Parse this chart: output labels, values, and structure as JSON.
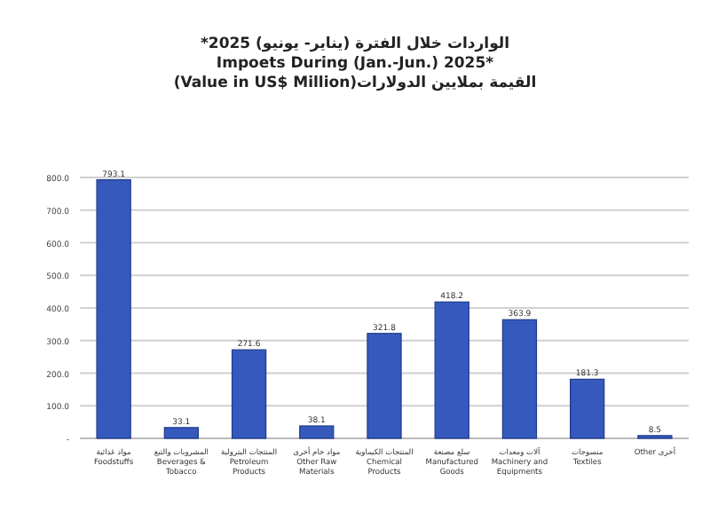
{
  "chart_data": {
    "type": "bar",
    "title": "الواردات خلال الفترة (يناير- يونيو) 2025*\nImpoets During (Jan.-Jun.) 2025*\n(Value in US$ Million)القيمة بملايين الدولارات",
    "categories": [
      "مواد غذائية\nFoodstuffs",
      "المشروبات والتبغ\nBeverages &\nTobacco",
      "المنتجات البترولية\nPetroleum\nProducts",
      "مواد خام أخرى\nOther Raw\nMaterials",
      "المنتجات الكيماوية\nChemical\nProducts",
      "سلع مصنعة\nManufactured\nGoods",
      "آلات ومعدات\nMachinery and\nEquipments",
      "منسوجات\nTextiles",
      "أخرى Other"
    ],
    "values": [
      793.1,
      33.1,
      271.6,
      38.1,
      321.8,
      418.2,
      363.9,
      181.3,
      8.5
    ],
    "color": "#3559bd",
    "data_labels": true,
    "grid": "y",
    "ylim": [
      0,
      800
    ],
    "yticks": [
      {
        "value": 0,
        "label": "-"
      },
      {
        "value": 100,
        "label": "100.0"
      },
      {
        "value": 200,
        "label": "200.0"
      },
      {
        "value": 300,
        "label": "300.0"
      },
      {
        "value": 400,
        "label": "400.0"
      },
      {
        "value": 500,
        "label": "500.0"
      },
      {
        "value": 600,
        "label": "600.0"
      },
      {
        "value": 700,
        "label": "700.0"
      },
      {
        "value": 800,
        "label": "800.0"
      }
    ]
  }
}
